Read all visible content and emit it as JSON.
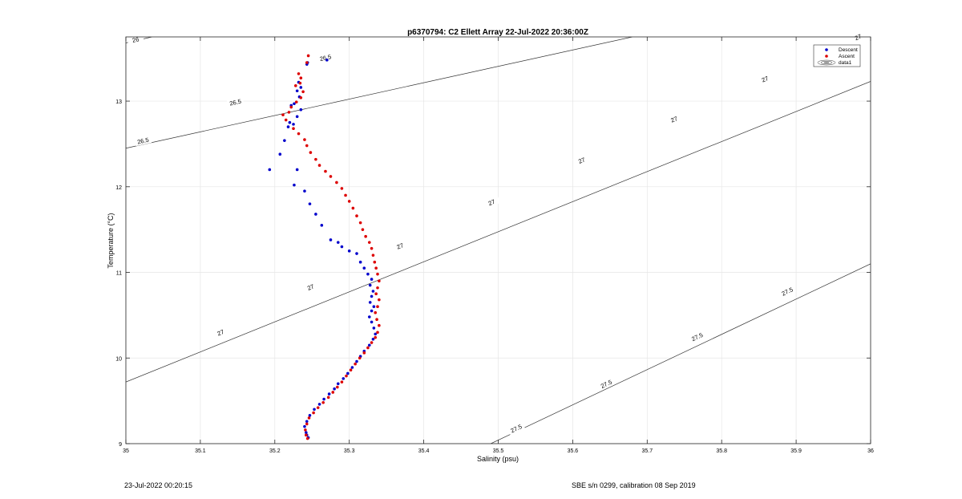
{
  "chart_data": {
    "type": "scatter",
    "title": "p6370794: C2 Ellett Array 22-Jul-2022 20:36:00Z",
    "xlabel": "Salinity (psu)",
    "ylabel": "Temperature (°C)",
    "xlim": [
      35,
      36
    ],
    "ylim": [
      9,
      13.75
    ],
    "x_ticks": [
      35,
      35.1,
      35.2,
      35.3,
      35.4,
      35.5,
      35.6,
      35.7,
      35.8,
      35.9,
      36
    ],
    "x_tick_labels": [
      "35",
      "35.1",
      "35.2",
      "35.3",
      "35.4",
      "35.5",
      "35.6",
      "35.7",
      "35.8",
      "35.9",
      "36"
    ],
    "y_ticks": [
      9,
      10,
      11,
      12,
      13
    ],
    "y_tick_labels": [
      "9",
      "10",
      "11",
      "12",
      "13"
    ],
    "grid": true,
    "legend_position": "top-right",
    "legend": [
      {
        "label": "Descent",
        "marker": "dot",
        "color": "#0000cc"
      },
      {
        "label": "Ascent",
        "marker": "dot",
        "color": "#dd0000"
      },
      {
        "label": "data1",
        "marker": "contour"
      }
    ],
    "contours": [
      {
        "label": "26",
        "x": [
          35,
          35.035
        ],
        "y": [
          13.68,
          13.75
        ],
        "label_positions": [
          [
            35.013,
            13.72
          ]
        ]
      },
      {
        "label": "26.5",
        "x": [
          35,
          35.68
        ],
        "y": [
          12.45,
          13.75
        ],
        "label_positions": [
          [
            35.023,
            12.54
          ],
          [
            35.147,
            12.99
          ],
          [
            35.268,
            13.51
          ],
          [
            35.392,
            13.97
          ],
          [
            35.518,
            14.42
          ],
          [
            35.643,
            14.86
          ]
        ]
      },
      {
        "label": "27",
        "x": [
          35,
          36
        ],
        "y": [
          9.72,
          13.23
        ],
        "label_positions": [
          [
            35.127,
            10.3
          ],
          [
            35.248,
            10.83
          ],
          [
            35.368,
            11.31
          ],
          [
            35.491,
            11.82
          ],
          [
            35.612,
            12.31
          ],
          [
            35.736,
            12.79
          ],
          [
            35.858,
            13.26
          ],
          [
            35.983,
            13.75
          ]
        ]
      },
      {
        "label": "27.5",
        "x": [
          35.49,
          36
        ],
        "y": [
          9,
          11.1
        ],
        "label_positions": [
          [
            35.524,
            9.18
          ],
          [
            35.645,
            9.7
          ],
          [
            35.767,
            10.25
          ],
          [
            35.888,
            10.78
          ]
        ]
      }
    ],
    "series": [
      {
        "name": "Descent",
        "color": "#0000cc",
        "points": [
          [
            35.244,
            13.45
          ],
          [
            35.27,
            13.48
          ],
          [
            35.243,
            13.43
          ],
          [
            35.232,
            13.22
          ],
          [
            35.235,
            13.16
          ],
          [
            35.23,
            13.12
          ],
          [
            35.233,
            13.05
          ],
          [
            35.226,
            12.97
          ],
          [
            35.222,
            12.95
          ],
          [
            35.235,
            12.9
          ],
          [
            35.23,
            12.82
          ],
          [
            35.22,
            12.75
          ],
          [
            35.225,
            12.73
          ],
          [
            35.218,
            12.7
          ],
          [
            35.213,
            12.54
          ],
          [
            35.207,
            12.38
          ],
          [
            35.23,
            12.2
          ],
          [
            35.226,
            12.02
          ],
          [
            35.193,
            12.2
          ],
          [
            35.24,
            11.95
          ],
          [
            35.247,
            11.8
          ],
          [
            35.255,
            11.68
          ],
          [
            35.263,
            11.55
          ],
          [
            35.275,
            11.38
          ],
          [
            35.285,
            11.35
          ],
          [
            35.29,
            11.3
          ],
          [
            35.3,
            11.25
          ],
          [
            35.31,
            11.22
          ],
          [
            35.315,
            11.12
          ],
          [
            35.32,
            11.05
          ],
          [
            35.325,
            10.98
          ],
          [
            35.33,
            10.92
          ],
          [
            35.328,
            10.85
          ],
          [
            35.332,
            10.78
          ],
          [
            35.33,
            10.72
          ],
          [
            35.328,
            10.65
          ],
          [
            35.333,
            10.6
          ],
          [
            35.33,
            10.55
          ],
          [
            35.327,
            10.48
          ],
          [
            35.33,
            10.42
          ],
          [
            35.333,
            10.35
          ],
          [
            35.335,
            10.28
          ],
          [
            35.332,
            10.22
          ],
          [
            35.327,
            10.15
          ],
          [
            35.32,
            10.08
          ],
          [
            35.315,
            10.02
          ],
          [
            35.31,
            9.96
          ],
          [
            35.304,
            9.89
          ],
          [
            35.298,
            9.82
          ],
          [
            35.292,
            9.76
          ],
          [
            35.285,
            9.7
          ],
          [
            35.28,
            9.64
          ],
          [
            35.273,
            9.58
          ],
          [
            35.266,
            9.52
          ],
          [
            35.26,
            9.46
          ],
          [
            35.253,
            9.4
          ],
          [
            35.247,
            9.33
          ],
          [
            35.243,
            9.26
          ],
          [
            35.24,
            9.2
          ],
          [
            35.242,
            9.13
          ],
          [
            35.243,
            9.1
          ],
          [
            35.245,
            9.07
          ]
        ]
      },
      {
        "name": "Ascent",
        "color": "#dd0000",
        "points": [
          [
            35.245,
            13.53
          ],
          [
            35.243,
            13.45
          ],
          [
            35.232,
            13.32
          ],
          [
            35.235,
            13.27
          ],
          [
            35.234,
            13.21
          ],
          [
            35.228,
            13.18
          ],
          [
            35.238,
            13.11
          ],
          [
            35.235,
            13.04
          ],
          [
            35.229,
            12.99
          ],
          [
            35.222,
            12.93
          ],
          [
            35.219,
            12.87
          ],
          [
            35.211,
            12.84
          ],
          [
            35.215,
            12.78
          ],
          [
            35.225,
            12.68
          ],
          [
            35.232,
            12.62
          ],
          [
            35.24,
            12.55
          ],
          [
            35.243,
            12.48
          ],
          [
            35.248,
            12.4
          ],
          [
            35.255,
            12.32
          ],
          [
            35.26,
            12.25
          ],
          [
            35.268,
            12.18
          ],
          [
            35.275,
            12.12
          ],
          [
            35.283,
            12.05
          ],
          [
            35.29,
            11.98
          ],
          [
            35.295,
            11.9
          ],
          [
            35.3,
            11.83
          ],
          [
            35.305,
            11.75
          ],
          [
            35.31,
            11.66
          ],
          [
            35.315,
            11.58
          ],
          [
            35.318,
            11.5
          ],
          [
            35.322,
            11.42
          ],
          [
            35.327,
            11.35
          ],
          [
            35.33,
            11.28
          ],
          [
            35.332,
            11.2
          ],
          [
            35.334,
            11.12
          ],
          [
            35.336,
            11.05
          ],
          [
            35.338,
            10.98
          ],
          [
            35.34,
            10.9
          ],
          [
            35.338,
            10.82
          ],
          [
            35.336,
            10.75
          ],
          [
            35.34,
            10.68
          ],
          [
            35.338,
            10.6
          ],
          [
            35.335,
            10.53
          ],
          [
            35.337,
            10.45
          ],
          [
            35.34,
            10.38
          ],
          [
            35.338,
            10.3
          ],
          [
            35.335,
            10.24
          ],
          [
            35.33,
            10.18
          ],
          [
            35.325,
            10.12
          ],
          [
            35.32,
            10.06
          ],
          [
            35.314,
            10.0
          ],
          [
            35.308,
            9.93
          ],
          [
            35.302,
            9.86
          ],
          [
            35.296,
            9.79
          ],
          [
            35.29,
            9.72
          ],
          [
            35.284,
            9.66
          ],
          [
            35.278,
            9.6
          ],
          [
            35.272,
            9.54
          ],
          [
            35.265,
            9.48
          ],
          [
            35.258,
            9.42
          ],
          [
            35.252,
            9.36
          ],
          [
            35.246,
            9.3
          ],
          [
            35.243,
            9.23
          ],
          [
            35.241,
            9.16
          ],
          [
            35.242,
            9.1
          ],
          [
            35.244,
            9.06
          ]
        ]
      }
    ]
  },
  "footer": {
    "timestamp": "23-Jul-2022 00:20:15",
    "instrument": "SBE s/n 0299, calibration 08 Sep 2019"
  }
}
